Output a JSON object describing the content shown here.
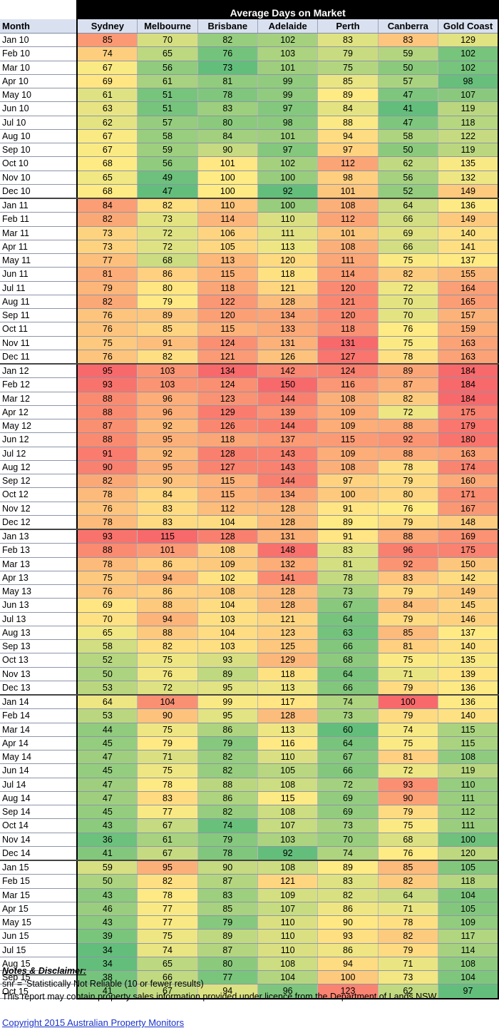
{
  "chart_data": {
    "type": "heatmap",
    "title": "Average Days on Market",
    "row_header": "Month",
    "columns": [
      "Sydney",
      "Melbourne",
      "Brisbane",
      "Adelaide",
      "Perth",
      "Canberra",
      "Gold Coast"
    ],
    "rows": [
      {
        "month": "Jan 10",
        "values": [
          85,
          70,
          82,
          102,
          83,
          83,
          129
        ]
      },
      {
        "month": "Feb 10",
        "values": [
          74,
          65,
          76,
          103,
          79,
          59,
          102
        ]
      },
      {
        "month": "Mar 10",
        "values": [
          67,
          56,
          73,
          101,
          75,
          50,
          102
        ]
      },
      {
        "month": "Apr 10",
        "values": [
          69,
          61,
          81,
          99,
          85,
          57,
          98
        ]
      },
      {
        "month": "May 10",
        "values": [
          61,
          51,
          78,
          99,
          89,
          47,
          107
        ]
      },
      {
        "month": "Jun 10",
        "values": [
          63,
          51,
          83,
          97,
          84,
          41,
          119
        ]
      },
      {
        "month": "Jul 10",
        "values": [
          62,
          57,
          80,
          98,
          88,
          47,
          118
        ]
      },
      {
        "month": "Aug 10",
        "values": [
          67,
          58,
          84,
          101,
          94,
          58,
          122
        ]
      },
      {
        "month": "Sep 10",
        "values": [
          67,
          59,
          90,
          97,
          97,
          50,
          119
        ]
      },
      {
        "month": "Oct 10",
        "values": [
          68,
          56,
          101,
          102,
          112,
          62,
          135
        ]
      },
      {
        "month": "Nov 10",
        "values": [
          65,
          49,
          100,
          100,
          98,
          56,
          132
        ]
      },
      {
        "month": "Dec 10",
        "values": [
          68,
          47,
          100,
          92,
          101,
          52,
          149
        ]
      },
      {
        "month": "Jan 11",
        "values": [
          84,
          82,
          110,
          100,
          108,
          64,
          136
        ]
      },
      {
        "month": "Feb 11",
        "values": [
          82,
          73,
          114,
          110,
          112,
          66,
          149
        ]
      },
      {
        "month": "Mar 11",
        "values": [
          73,
          72,
          106,
          111,
          101,
          69,
          140
        ]
      },
      {
        "month": "Apr 11",
        "values": [
          73,
          72,
          105,
          113,
          108,
          66,
          141
        ]
      },
      {
        "month": "May 11",
        "values": [
          77,
          68,
          113,
          120,
          111,
          75,
          137
        ]
      },
      {
        "month": "Jun 11",
        "values": [
          81,
          86,
          115,
          118,
          114,
          82,
          155
        ]
      },
      {
        "month": "Jul 11",
        "values": [
          79,
          80,
          118,
          121,
          120,
          72,
          164
        ]
      },
      {
        "month": "Aug 11",
        "values": [
          82,
          79,
          122,
          128,
          121,
          70,
          165
        ]
      },
      {
        "month": "Sep 11",
        "values": [
          76,
          89,
          120,
          134,
          120,
          70,
          157
        ]
      },
      {
        "month": "Oct 11",
        "values": [
          76,
          85,
          115,
          133,
          118,
          76,
          159
        ]
      },
      {
        "month": "Nov 11",
        "values": [
          75,
          91,
          124,
          131,
          131,
          75,
          163
        ]
      },
      {
        "month": "Dec 11",
        "values": [
          76,
          82,
          121,
          126,
          127,
          78,
          163
        ]
      },
      {
        "month": "Jan 12",
        "values": [
          95,
          103,
          134,
          142,
          124,
          89,
          184
        ]
      },
      {
        "month": "Feb 12",
        "values": [
          93,
          103,
          124,
          150,
          116,
          87,
          184
        ]
      },
      {
        "month": "Mar 12",
        "values": [
          88,
          96,
          123,
          144,
          108,
          82,
          184
        ]
      },
      {
        "month": "Apr 12",
        "values": [
          88,
          96,
          129,
          139,
          109,
          72,
          175
        ]
      },
      {
        "month": "May 12",
        "values": [
          87,
          92,
          126,
          144,
          109,
          88,
          179
        ]
      },
      {
        "month": "Jun 12",
        "values": [
          88,
          95,
          118,
          137,
          115,
          92,
          180
        ]
      },
      {
        "month": "Jul 12",
        "values": [
          91,
          92,
          128,
          143,
          109,
          88,
          163
        ]
      },
      {
        "month": "Aug 12",
        "values": [
          90,
          95,
          127,
          143,
          108,
          78,
          174
        ]
      },
      {
        "month": "Sep 12",
        "values": [
          82,
          90,
          115,
          144,
          97,
          79,
          160
        ]
      },
      {
        "month": "Oct 12",
        "values": [
          78,
          84,
          115,
          134,
          100,
          80,
          171
        ]
      },
      {
        "month": "Nov 12",
        "values": [
          76,
          83,
          112,
          128,
          91,
          76,
          167
        ]
      },
      {
        "month": "Dec 12",
        "values": [
          78,
          83,
          104,
          128,
          89,
          79,
          148
        ]
      },
      {
        "month": "Jan 13",
        "values": [
          93,
          115,
          128,
          131,
          91,
          88,
          169
        ]
      },
      {
        "month": "Feb 13",
        "values": [
          88,
          101,
          108,
          148,
          83,
          96,
          175
        ]
      },
      {
        "month": "Mar 13",
        "values": [
          78,
          86,
          109,
          132,
          81,
          92,
          150
        ]
      },
      {
        "month": "Apr 13",
        "values": [
          75,
          94,
          102,
          141,
          78,
          83,
          142
        ]
      },
      {
        "month": "May 13",
        "values": [
          76,
          86,
          108,
          128,
          73,
          79,
          149
        ]
      },
      {
        "month": "Jun 13",
        "values": [
          69,
          88,
          104,
          128,
          67,
          84,
          145
        ]
      },
      {
        "month": "Jul 13",
        "values": [
          70,
          94,
          103,
          121,
          64,
          79,
          146
        ]
      },
      {
        "month": "Aug 13",
        "values": [
          65,
          88,
          104,
          123,
          63,
          85,
          137
        ]
      },
      {
        "month": "Sep 13",
        "values": [
          58,
          82,
          103,
          125,
          66,
          81,
          140
        ]
      },
      {
        "month": "Oct 13",
        "values": [
          52,
          75,
          93,
          129,
          68,
          75,
          135
        ]
      },
      {
        "month": "Nov 13",
        "values": [
          50,
          76,
          89,
          118,
          64,
          71,
          139
        ]
      },
      {
        "month": "Dec 13",
        "values": [
          53,
          72,
          95,
          113,
          66,
          79,
          136
        ]
      },
      {
        "month": "Jan 14",
        "values": [
          64,
          104,
          99,
          117,
          74,
          100,
          136
        ]
      },
      {
        "month": "Feb 14",
        "values": [
          53,
          90,
          95,
          128,
          73,
          79,
          140
        ]
      },
      {
        "month": "Mar 14",
        "values": [
          44,
          75,
          86,
          113,
          60,
          74,
          115
        ]
      },
      {
        "month": "Apr 14",
        "values": [
          45,
          79,
          79,
          116,
          64,
          75,
          115
        ]
      },
      {
        "month": "May 14",
        "values": [
          47,
          71,
          82,
          110,
          67,
          81,
          108
        ]
      },
      {
        "month": "Jun 14",
        "values": [
          45,
          75,
          82,
          105,
          66,
          72,
          119
        ]
      },
      {
        "month": "Jul 14",
        "values": [
          47,
          78,
          88,
          108,
          72,
          93,
          110
        ]
      },
      {
        "month": "Aug 14",
        "values": [
          47,
          83,
          86,
          115,
          69,
          90,
          111
        ]
      },
      {
        "month": "Sep 14",
        "values": [
          45,
          77,
          82,
          108,
          69,
          79,
          112
        ]
      },
      {
        "month": "Oct 14",
        "values": [
          43,
          67,
          74,
          107,
          73,
          75,
          111
        ]
      },
      {
        "month": "Nov 14",
        "values": [
          36,
          61,
          79,
          103,
          70,
          68,
          100
        ]
      },
      {
        "month": "Dec 14",
        "values": [
          41,
          67,
          78,
          92,
          74,
          76,
          120
        ]
      },
      {
        "month": "Jan 15",
        "values": [
          59,
          95,
          90,
          108,
          89,
          85,
          105
        ]
      },
      {
        "month": "Feb 15",
        "values": [
          50,
          82,
          87,
          121,
          83,
          82,
          118
        ]
      },
      {
        "month": "Mar 15",
        "values": [
          43,
          78,
          83,
          109,
          82,
          64,
          104
        ]
      },
      {
        "month": "Apr 15",
        "values": [
          46,
          77,
          85,
          107,
          86,
          71,
          105
        ]
      },
      {
        "month": "May 15",
        "values": [
          43,
          77,
          79,
          110,
          90,
          78,
          109
        ]
      },
      {
        "month": "Jun 15",
        "values": [
          39,
          75,
          89,
          110,
          93,
          82,
          117
        ]
      },
      {
        "month": "Jul 15",
        "values": [
          34,
          74,
          87,
          110,
          86,
          79,
          114
        ]
      },
      {
        "month": "Aug 15",
        "values": [
          34,
          65,
          80,
          108,
          94,
          71,
          108
        ]
      },
      {
        "month": "Sep 15",
        "values": [
          38,
          66,
          77,
          104,
          100,
          73,
          104
        ]
      },
      {
        "month": "Oct 15",
        "values": [
          41,
          67,
          94,
          96,
          123,
          62,
          97
        ]
      }
    ],
    "color_scale": {
      "low": "#63be7b",
      "mid": "#ffeb84",
      "high": "#f8696b",
      "per_column": true
    }
  },
  "notes": {
    "title": "Notes & Disclaimer:",
    "line1": "snr = 'Statistically Not Reliable (10 or fewer results)",
    "line2": "This report may contain property sales information provided under licence from the Department of Lands NSW"
  },
  "copyright": "Copyright 2015 Australian Property Monitors"
}
